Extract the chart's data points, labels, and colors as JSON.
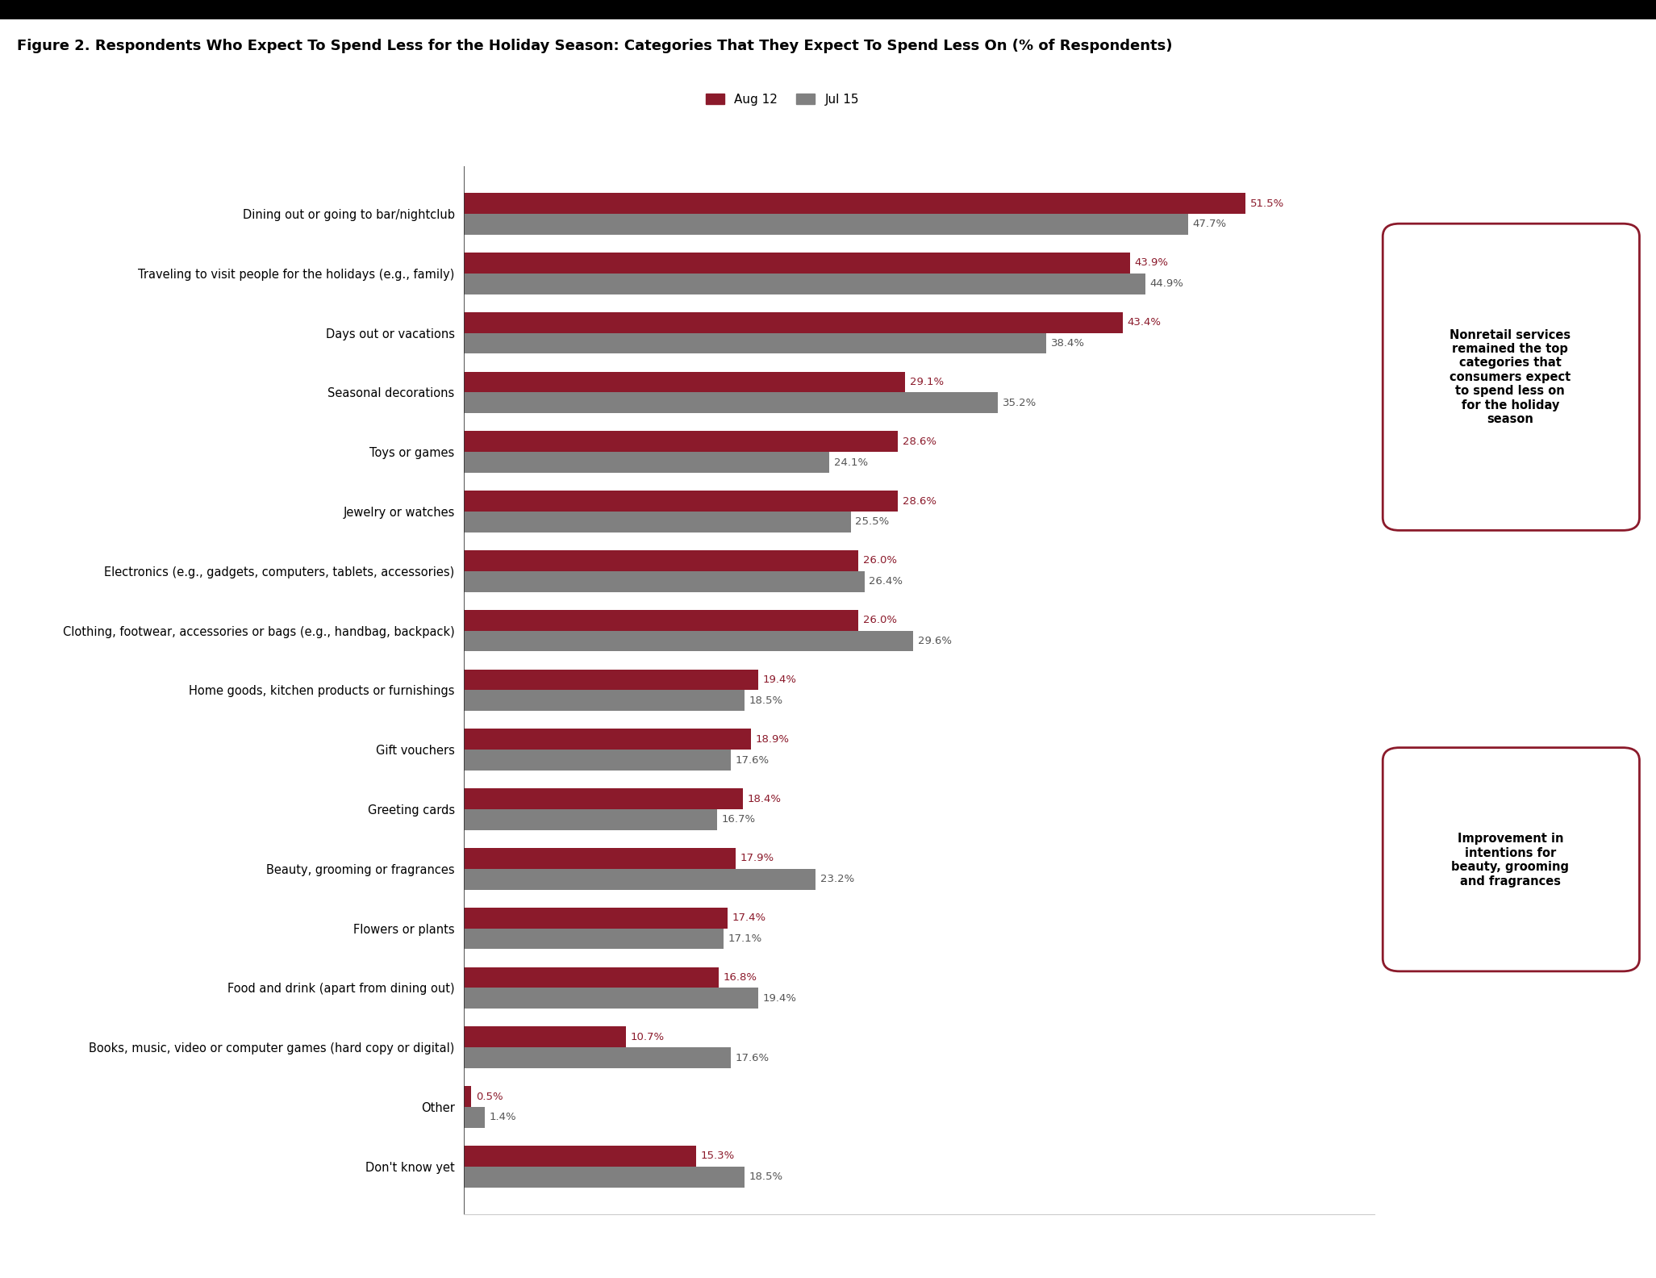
{
  "title": "Figure 2. Respondents Who Expect To Spend Less for the Holiday Season: Categories That They Expect To Spend Less On (% of Respondents)",
  "categories": [
    "Dining out or going to bar/nightclub",
    "Traveling to visit people for the holidays (e.g., family)",
    "Days out or vacations",
    "Seasonal decorations",
    "Toys or games",
    "Jewelry or watches",
    "Electronics (e.g., gadgets, computers, tablets, accessories)",
    "Clothing, footwear, accessories or bags (e.g., handbag, backpack)",
    "Home goods, kitchen products or furnishings",
    "Gift vouchers",
    "Greeting cards",
    "Beauty, grooming or fragrances",
    "Flowers or plants",
    "Food and drink (apart from dining out)",
    "Books, music, video or computer games (hard copy or digital)",
    "Other",
    "Don't know yet"
  ],
  "aug12": [
    51.5,
    43.9,
    43.4,
    29.1,
    28.6,
    28.6,
    26.0,
    26.0,
    19.4,
    18.9,
    18.4,
    17.9,
    17.4,
    16.8,
    10.7,
    0.5,
    15.3
  ],
  "jul15": [
    47.7,
    44.9,
    38.4,
    35.2,
    24.1,
    25.5,
    26.4,
    29.6,
    18.5,
    17.6,
    16.7,
    23.2,
    17.1,
    19.4,
    17.6,
    1.4,
    18.5
  ],
  "aug12_color": "#8B1A2B",
  "jul15_color": "#808080",
  "aug12_label": "Aug 12",
  "jul15_label": "Jul 15",
  "annotation1_text": "Nonretail services\nremained the top\ncategories that\nconsumers expect\nto spend less on\nfor the holiday\nseason",
  "annotation2_text": "Improvement in\nintentions for\nbeauty, grooming\nand fragrances",
  "background_color": "#ffffff",
  "title_fontsize": 13,
  "bar_height": 0.35,
  "xlim": [
    0,
    60
  ]
}
